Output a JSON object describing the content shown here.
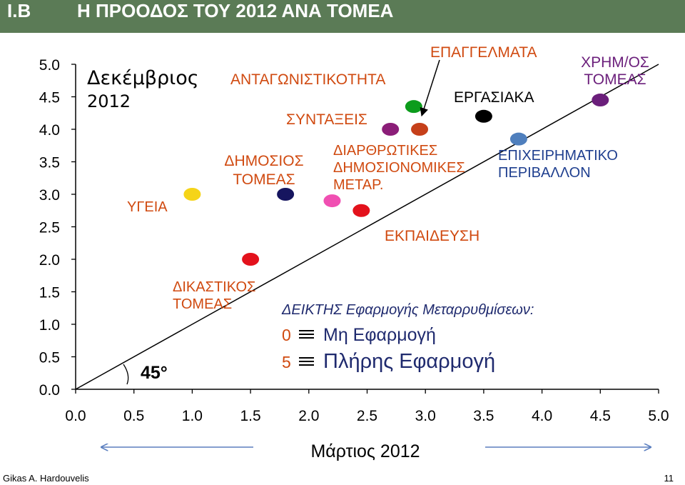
{
  "header": {
    "section": "I.B",
    "title": "Η ΠΡΟΟΔΟΣ ΤΟΥ 2012 ΑΝΑ ΤΟΜΕΑ"
  },
  "footer": {
    "author": "Gikas A. Hardouvelis",
    "page": "11"
  },
  "labels": {
    "y_date_line1": "Δεκέμβριος",
    "y_date_line2": "2012",
    "x_date": "Μάρτιος 2012",
    "angle": "45°",
    "index_title": "ΔΕΙΚΤΗΣ Εφαρμογής Μεταρρυθμίσεων:",
    "index_zero_num": "0",
    "index_zero_text": "Μη Εφαρμογή",
    "index_five_num": "5",
    "index_five_text": "Πλήρης Εφαρμογή"
  },
  "colors": {
    "header_bg": "#5b7b56",
    "index_text": "#1f2a6e",
    "sector_text": "#d04a10",
    "employment_text": "#000000",
    "finance_text": "#6b1f7b",
    "business_text": "#1f3f8f"
  },
  "chart_data": {
    "type": "scatter",
    "xlim": [
      0,
      5
    ],
    "ylim": [
      0,
      5
    ],
    "x_ticks": [
      "0.0",
      "0.5",
      "1.0",
      "1.5",
      "2.0",
      "2.5",
      "3.0",
      "3.5",
      "4.0",
      "4.5",
      "5.0"
    ],
    "y_ticks": [
      "0.0",
      "0.5",
      "1.0",
      "1.5",
      "2.0",
      "2.5",
      "3.0",
      "3.5",
      "4.0",
      "4.5",
      "5.0"
    ],
    "diagonal": true,
    "grid": false,
    "points": [
      {
        "label": "ΥΓΕΙΑ",
        "x": 1.0,
        "y": 3.0,
        "color": "#f5d418"
      },
      {
        "label": "ΔΙΚΑΣΤΙΚΟΣ ΤΟΜΕΑΣ",
        "x": 1.5,
        "y": 2.0,
        "color": "#e3121c"
      },
      {
        "label": "ΔΗΜΟΣΙΟΣ ΤΟΜΕΑΣ",
        "x": 1.8,
        "y": 3.0,
        "color": "#16155f"
      },
      {
        "label": "ΔΙΑΡΘΡΩΤΙΚΕΣ ΔΗΜΟΣΙΟΝΟΜΙΚΕΣ ΜΕΤΑΡ.",
        "x": 2.2,
        "y": 2.9,
        "color": "#f04fb2"
      },
      {
        "label": "ΕΚΠΑΙΔΕΥΣΗ",
        "x": 2.45,
        "y": 2.75,
        "color": "#e3121c"
      },
      {
        "label": "ΣΥΝΤΑΞΕΙΣ",
        "x": 2.7,
        "y": 4.0,
        "color": "#8b1e78"
      },
      {
        "label": "ΑΝΤΑΓΩΝΙΣΤΙΚΟΤΗΤΑ",
        "x": 2.9,
        "y": 4.35,
        "color": "#0c9c1c"
      },
      {
        "label": "ΕΠΑΓΓΕΛΜΑΤΑ",
        "x": 2.95,
        "y": 4.0,
        "color": "#c6401a"
      },
      {
        "label": "ΕΡΓΑΣΙΑΚΑ",
        "x": 3.5,
        "y": 4.2,
        "color": "#000000"
      },
      {
        "label": "ΕΠΙΧΕΙΡΗΜΑΤΙΚΟ ΠΕΡΙΒΑΛΛΟΝ",
        "x": 3.8,
        "y": 3.85,
        "color": "#4f7fbd"
      },
      {
        "label": "ΧΡΗΜ/ΟΣ ΤΟΜΕΑΣ",
        "x": 4.5,
        "y": 4.45,
        "color": "#6b1f7b"
      }
    ],
    "annotations": [
      {
        "lines": [
          "ΥΓΕΙΑ"
        ],
        "color": "#d04a10"
      },
      {
        "lines": [
          "ΔΙΚΑΣΤΙΚΟΣ",
          "ΤΟΜΕΑΣ"
        ],
        "color": "#d04a10"
      },
      {
        "lines": [
          "ΔΗΜΟΣΙΟΣ",
          "ΤΟΜΕΑΣ"
        ],
        "color": "#d04a10"
      },
      {
        "lines": [
          "ΑΝΤΑΓΩΝΙΣΤΙΚΟΤΗΤΑ"
        ],
        "color": "#d04a10"
      },
      {
        "lines": [
          "ΣΥΝΤΑΞΕΙΣ"
        ],
        "color": "#d04a10"
      },
      {
        "lines": [
          "ΕΠΑΓΓΕΛΜΑΤΑ"
        ],
        "color": "#d04a10"
      },
      {
        "lines": [
          "ΕΡΓΑΣΙΑΚΑ"
        ],
        "color": "#000000"
      },
      {
        "lines": [
          "ΔΙΑΡΘΡΩΤΙΚΕΣ",
          "ΔΗΜΟΣΙΟΝΟΜΙΚΕΣ",
          "ΜΕΤΑΡ."
        ],
        "color": "#d04a10"
      },
      {
        "lines": [
          "ΕΠΙΧΕΙΡΗΜΑΤΙΚΟ",
          "ΠΕΡΙΒΑΛΛΟΝ"
        ],
        "color": "#1f3f8f"
      },
      {
        "lines": [
          "ΕΚΠΑΙΔΕΥΣΗ"
        ],
        "color": "#d04a10"
      },
      {
        "lines": [
          "ΧΡΗΜ/ΟΣ",
          "ΤΟΜΕΑΣ"
        ],
        "color": "#6b1f7b"
      }
    ]
  }
}
